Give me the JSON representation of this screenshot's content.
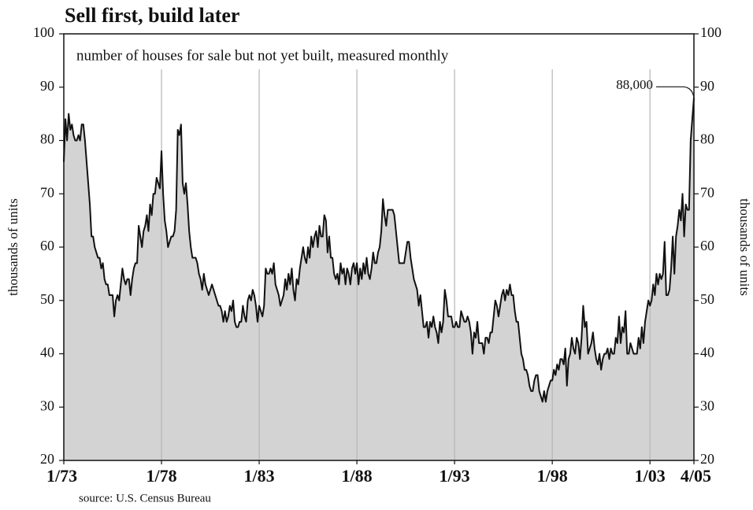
{
  "chart_data": {
    "type": "area",
    "title": "Sell first, build later",
    "subtitle": "number of houses for sale but not yet built, measured monthly",
    "ylabel": "thousands of units",
    "y2label": "thousands of units",
    "source": "source: U.S. Census Bureau",
    "annotation": "88,000",
    "fill": "#d3d3d3",
    "color": "#111111",
    "grid": true,
    "ylim": [
      20,
      100
    ],
    "yticks": [
      20,
      30,
      40,
      50,
      60,
      70,
      80,
      90,
      100
    ],
    "y2lim": [
      20,
      100
    ],
    "y2ticks": [
      20,
      30,
      40,
      50,
      60,
      70,
      80,
      90,
      100
    ],
    "categories": [
      "1/73",
      null,
      null,
      null,
      null,
      null,
      null,
      null,
      null,
      null,
      null,
      null,
      null,
      null,
      null,
      null,
      null,
      null,
      null,
      null,
      null,
      null,
      null,
      null,
      null,
      null,
      null,
      null,
      null,
      null,
      null,
      null,
      null,
      null,
      null,
      null,
      null,
      null,
      null,
      null,
      null,
      null,
      null,
      null,
      null,
      null,
      null,
      null,
      null,
      null,
      null,
      null,
      null,
      null,
      null,
      null,
      null,
      null,
      null,
      null,
      "1/78",
      null,
      null,
      null,
      null,
      null,
      null,
      null,
      null,
      null,
      null,
      null,
      null,
      null,
      null,
      null,
      null,
      null,
      null,
      null,
      null,
      null,
      null,
      null,
      null,
      null,
      null,
      null,
      null,
      null,
      null,
      null,
      null,
      null,
      null,
      null,
      null,
      null,
      null,
      null,
      null,
      null,
      null,
      null,
      null,
      null,
      null,
      null,
      null,
      null,
      null,
      null,
      null,
      null,
      null,
      null,
      null,
      null,
      null,
      null,
      "1/83",
      null,
      null,
      null,
      null,
      null,
      null,
      null,
      null,
      null,
      null,
      null,
      null,
      null,
      null,
      null,
      null,
      null,
      null,
      null,
      null,
      null,
      null,
      null,
      null,
      null,
      null,
      null,
      null,
      null,
      null,
      null,
      null,
      null,
      null,
      null,
      null,
      null,
      null,
      null,
      null,
      null,
      null,
      null,
      null,
      null,
      null,
      null,
      null,
      null,
      null,
      null,
      null,
      null,
      null,
      null,
      null,
      null,
      null,
      null,
      "1/88",
      null,
      null,
      null,
      null,
      null,
      null,
      null,
      null,
      null,
      null,
      null,
      null,
      null,
      null,
      null,
      null,
      null,
      null,
      null,
      null,
      null,
      null,
      null,
      null,
      null,
      null,
      null,
      null,
      null,
      null,
      null,
      null,
      null,
      null,
      null,
      null,
      null,
      null,
      null,
      null,
      null,
      null,
      null,
      null,
      null,
      null,
      null,
      null,
      null,
      null,
      null,
      null,
      null,
      null,
      null,
      null,
      null,
      null,
      null,
      "1/93",
      null,
      null,
      null,
      null,
      null,
      null,
      null,
      null,
      null,
      null,
      null,
      null,
      null,
      null,
      null,
      null,
      null,
      null,
      null,
      null,
      null,
      null,
      null,
      null,
      null,
      null,
      null,
      null,
      null,
      null,
      null,
      null,
      null,
      null,
      null,
      null,
      null,
      null,
      null,
      null,
      null,
      null,
      null,
      null,
      null,
      null,
      null,
      null,
      null,
      null,
      null,
      null,
      null,
      null,
      null,
      null,
      null,
      null,
      null,
      "1/98",
      null,
      null,
      null,
      null,
      null,
      null,
      null,
      null,
      null,
      null,
      null,
      null,
      null,
      null,
      null,
      null,
      null,
      null,
      null,
      null,
      null,
      null,
      null,
      null,
      null,
      null,
      null,
      null,
      null,
      null,
      null,
      null,
      null,
      null,
      null,
      null,
      null,
      null,
      null,
      null,
      null,
      null,
      null,
      null,
      null,
      null,
      null,
      null,
      null,
      null,
      null,
      null,
      null,
      null,
      null,
      null,
      null,
      null,
      null,
      "1/03",
      null,
      null,
      null,
      null,
      null,
      null,
      null,
      null,
      null,
      null,
      null,
      null,
      null,
      null,
      null,
      null,
      null,
      null,
      null,
      null,
      null,
      null,
      null,
      null,
      null,
      null,
      "4/05"
    ],
    "values": [
      76,
      84,
      80,
      85,
      82,
      83,
      81,
      80,
      80,
      81,
      80,
      83,
      83,
      80,
      76,
      72,
      68,
      62,
      62,
      60,
      59,
      58,
      58,
      56,
      57,
      54,
      53,
      53,
      51,
      51,
      51,
      47,
      50,
      51,
      50,
      53,
      56,
      54,
      53,
      54,
      54,
      51,
      54,
      56,
      57,
      57,
      64,
      62,
      60,
      63,
      64,
      66,
      63,
      68,
      66,
      70,
      70,
      73,
      72,
      71,
      78,
      70,
      65,
      63,
      60,
      61,
      62,
      62,
      63,
      67,
      82,
      81,
      83,
      72,
      70,
      72,
      68,
      63,
      60,
      58,
      58,
      58,
      57,
      55,
      54,
      52,
      55,
      53,
      52,
      51,
      52,
      53,
      52,
      51,
      50,
      49,
      49,
      48,
      46,
      48,
      46,
      47,
      49,
      48,
      50,
      46,
      45,
      45,
      46,
      46,
      49,
      47,
      46,
      50,
      51,
      50,
      52,
      51,
      49,
      46,
      49,
      48,
      47,
      49,
      56,
      55,
      55,
      56,
      55,
      57,
      53,
      52,
      51,
      49,
      50,
      51,
      54,
      52,
      55,
      53,
      56,
      52,
      50,
      54,
      53,
      56,
      58,
      60,
      58,
      57,
      60,
      58,
      62,
      60,
      62,
      63,
      60,
      64,
      62,
      62,
      66,
      65,
      59,
      62,
      58,
      58,
      55,
      54,
      55,
      53,
      57,
      55,
      56,
      53,
      56,
      55,
      53,
      56,
      57,
      55,
      57,
      53,
      56,
      54,
      57,
      55,
      58,
      55,
      54,
      56,
      59,
      57,
      57,
      59,
      60,
      63,
      69,
      66,
      64,
      67,
      67,
      67,
      67,
      66,
      63,
      60,
      57,
      57,
      57,
      57,
      59,
      61,
      61,
      58,
      56,
      54,
      53,
      52,
      49,
      51,
      48,
      45,
      45,
      46,
      43,
      46,
      45,
      47,
      45,
      44,
      42,
      46,
      44,
      46,
      52,
      50,
      47,
      47,
      47,
      45,
      45,
      46,
      45,
      45,
      48,
      47,
      46,
      46,
      47,
      46,
      44,
      40,
      44,
      43,
      46,
      42,
      42,
      42,
      40,
      43,
      43,
      42,
      44,
      44,
      47,
      50,
      49,
      47,
      49,
      51,
      52,
      50,
      52,
      51,
      53,
      51,
      51,
      48,
      46,
      46,
      43,
      40,
      39,
      37,
      37,
      36,
      34,
      33,
      33,
      35,
      36,
      36,
      33,
      32,
      31,
      33,
      31,
      33,
      34,
      35,
      35,
      37,
      36,
      38,
      37,
      39,
      39,
      38,
      41,
      34,
      39,
      40,
      43,
      41,
      40,
      43,
      42,
      39,
      43,
      49,
      45,
      46,
      40,
      41,
      42,
      44,
      41,
      39,
      38,
      40,
      37,
      39,
      40,
      40,
      41,
      39,
      41,
      40,
      40,
      43,
      42,
      47,
      42,
      45,
      44,
      48,
      40,
      40,
      42,
      41,
      40,
      40,
      40,
      43,
      41,
      45,
      42,
      46,
      48,
      50,
      49,
      50,
      53,
      51,
      55,
      53,
      55,
      54,
      55,
      61,
      51,
      51,
      52,
      56,
      62,
      55,
      62,
      64,
      67,
      65,
      70,
      62,
      68,
      67,
      67,
      80,
      84,
      88
    ]
  }
}
